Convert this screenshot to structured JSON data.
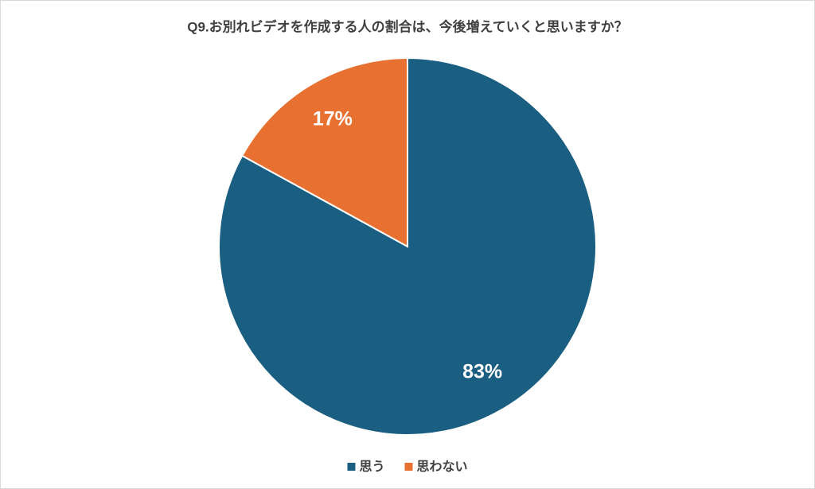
{
  "chart_data": {
    "type": "pie",
    "title": "Q9.お別れビデオを作成する人の割合は、今後増えていくと思いますか？",
    "categories": [
      "思う",
      "思わない"
    ],
    "values": [
      83,
      17
    ],
    "value_labels": [
      "83%",
      "17%"
    ],
    "colors": [
      "#1a5e82",
      "#e87132"
    ],
    "legend": "bottom"
  }
}
